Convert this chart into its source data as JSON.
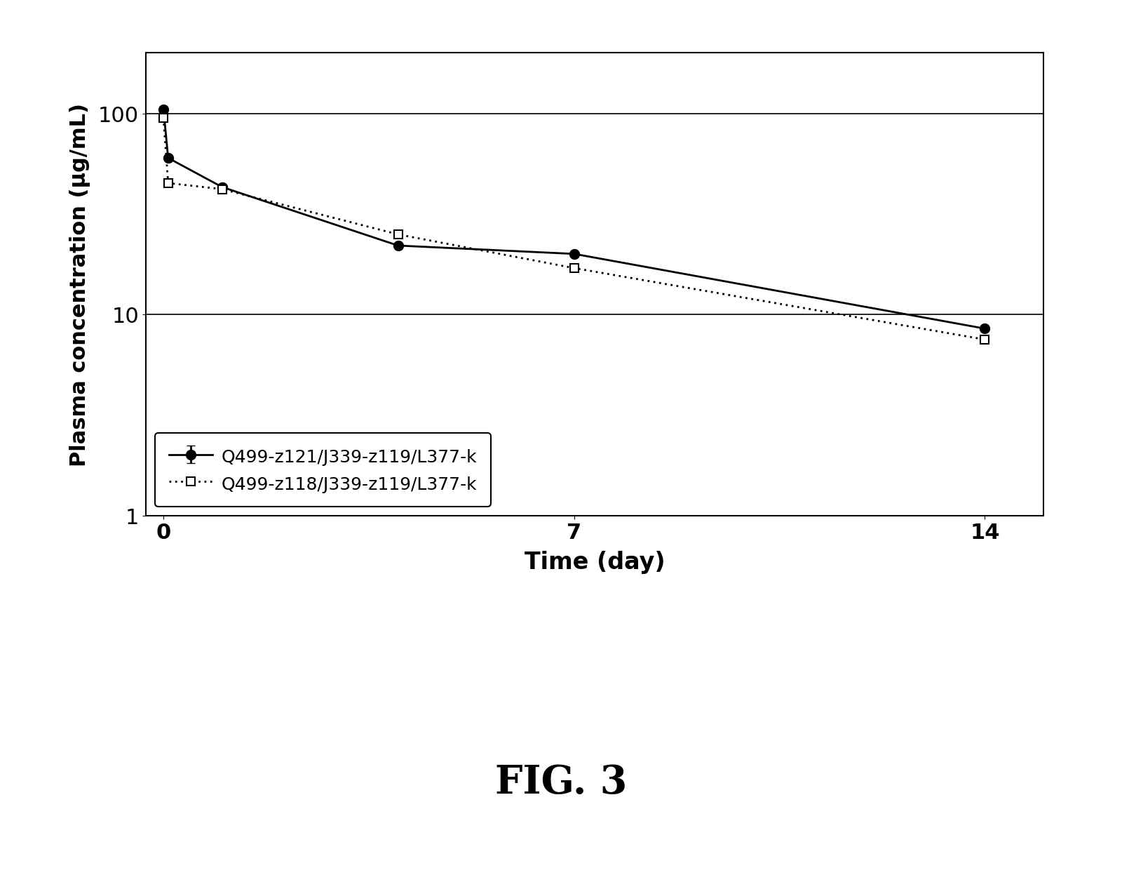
{
  "series1_label": "Q499-z121/J339-z119/L377-k",
  "series2_label": "Q499-z118/J339-z119/L377-k",
  "series1_x": [
    0,
    0.08,
    1,
    1,
    4,
    7,
    14
  ],
  "series1_y": [
    105,
    60,
    43,
    43,
    22,
    20,
    8.5
  ],
  "series1_yerr": [
    3,
    0,
    0,
    0,
    0,
    0,
    0
  ],
  "series2_x": [
    0,
    0.08,
    1,
    4,
    7,
    14
  ],
  "series2_y": [
    95,
    45,
    42,
    25,
    17,
    7.5
  ],
  "series2_yerr": [
    0,
    0,
    0,
    0,
    0,
    0
  ],
  "xlabel": "Time (day)",
  "ylabel": "Plasma concentration (μg/mL)",
  "xlim": [
    -0.3,
    15
  ],
  "ylim": [
    1,
    200
  ],
  "xticks": [
    0,
    7,
    14
  ],
  "fig_label": "FIG. 3",
  "background_color": "#ffffff",
  "line_color": "#000000",
  "grid_color": "#000000"
}
